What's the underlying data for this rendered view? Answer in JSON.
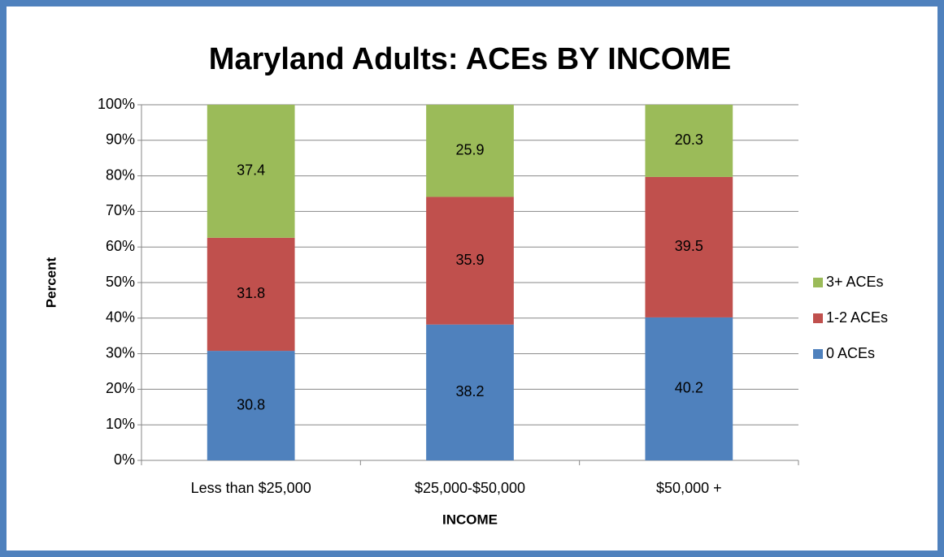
{
  "chart_data": {
    "type": "bar",
    "stacked": true,
    "title": "Maryland Adults:  ACEs BY INCOME",
    "x_label": "INCOME",
    "y_label": "Percent",
    "categories": [
      "Less than $25,000",
      "$25,000-$50,000",
      "$50,000 +"
    ],
    "series": [
      {
        "name": "0 ACEs",
        "color": "#4f81bd",
        "values": [
          30.8,
          38.2,
          40.2
        ]
      },
      {
        "name": "1-2 ACEs",
        "color": "#c0504d",
        "values": [
          31.8,
          35.9,
          39.5
        ]
      },
      {
        "name": "3+ ACEs",
        "color": "#9bbb59",
        "values": [
          37.4,
          25.9,
          20.3
        ]
      }
    ],
    "ylim": [
      0,
      100
    ],
    "yticks": [
      {
        "value": 0,
        "label": "0%"
      },
      {
        "value": 10,
        "label": "10%"
      },
      {
        "value": 20,
        "label": "20%"
      },
      {
        "value": 30,
        "label": "30%"
      },
      {
        "value": 40,
        "label": "40%"
      },
      {
        "value": 50,
        "label": "50%"
      },
      {
        "value": 60,
        "label": "60%"
      },
      {
        "value": 70,
        "label": "70%"
      },
      {
        "value": 80,
        "label": "80%"
      },
      {
        "value": 90,
        "label": "90%"
      },
      {
        "value": 100,
        "label": "100%"
      }
    ],
    "grid": true,
    "legend": "right"
  }
}
